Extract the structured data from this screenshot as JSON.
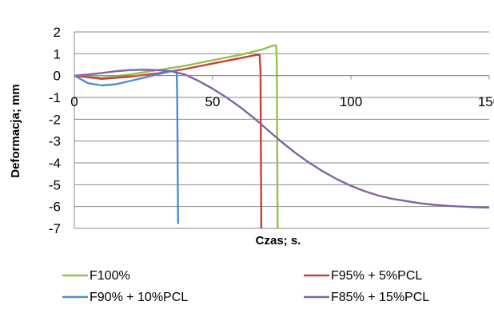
{
  "chart_data": {
    "type": "line",
    "xlabel": "Czas; s.",
    "ylabel": "Deformacja; mm",
    "xlim": [
      0,
      150
    ],
    "ylim": [
      -7,
      2
    ],
    "x_ticks": [
      "0",
      "50",
      "100",
      "150"
    ],
    "y_ticks": [
      "2",
      "1",
      "0",
      "-1",
      "-2",
      "-3",
      "-4",
      "-5",
      "-6",
      "-7"
    ],
    "grid": "horizontal",
    "legend_position": "bottom",
    "series": [
      {
        "name": "F100%",
        "color": "#92c34a",
        "points": [
          [
            0,
            0
          ],
          [
            10,
            -0.1
          ],
          [
            20,
            0.05
          ],
          [
            30,
            0.25
          ],
          [
            40,
            0.45
          ],
          [
            50,
            0.7
          ],
          [
            60,
            0.95
          ],
          [
            68,
            1.2
          ],
          [
            72,
            1.38
          ],
          [
            73,
            1.38
          ],
          [
            73.2,
            0.5
          ],
          [
            73.5,
            -7
          ]
        ]
      },
      {
        "name": "F95% + 5%PCL",
        "color": "#c9403a",
        "points": [
          [
            0,
            0
          ],
          [
            10,
            -0.15
          ],
          [
            20,
            -0.05
          ],
          [
            30,
            0.1
          ],
          [
            40,
            0.3
          ],
          [
            50,
            0.55
          ],
          [
            60,
            0.8
          ],
          [
            66,
            0.95
          ],
          [
            67,
            0.95
          ],
          [
            67.3,
            0.2
          ],
          [
            67.6,
            -7
          ]
        ]
      },
      {
        "name": "F90% + 10%PCL",
        "color": "#4a8fd6",
        "points": [
          [
            0,
            0
          ],
          [
            5,
            -0.35
          ],
          [
            10,
            -0.45
          ],
          [
            15,
            -0.4
          ],
          [
            20,
            -0.25
          ],
          [
            25,
            -0.1
          ],
          [
            30,
            0.05
          ],
          [
            35,
            0.2
          ],
          [
            37,
            0.2
          ],
          [
            37.2,
            -1
          ],
          [
            37.5,
            -6.8
          ]
        ]
      },
      {
        "name": "F85% + 15%PCL",
        "color": "#8064a2",
        "points": [
          [
            0,
            0
          ],
          [
            5,
            0.05
          ],
          [
            10,
            0.12
          ],
          [
            15,
            0.2
          ],
          [
            20,
            0.25
          ],
          [
            25,
            0.27
          ],
          [
            30,
            0.25
          ],
          [
            35,
            0.2
          ],
          [
            40,
            0.05
          ],
          [
            45,
            -0.25
          ],
          [
            50,
            -0.6
          ],
          [
            55,
            -1
          ],
          [
            60,
            -1.45
          ],
          [
            65,
            -1.95
          ],
          [
            70,
            -2.5
          ],
          [
            75,
            -3.05
          ],
          [
            80,
            -3.55
          ],
          [
            85,
            -4
          ],
          [
            90,
            -4.4
          ],
          [
            95,
            -4.75
          ],
          [
            100,
            -5.05
          ],
          [
            105,
            -5.3
          ],
          [
            110,
            -5.5
          ],
          [
            115,
            -5.65
          ],
          [
            120,
            -5.75
          ],
          [
            125,
            -5.85
          ],
          [
            130,
            -5.92
          ],
          [
            135,
            -5.97
          ],
          [
            140,
            -6.0
          ],
          [
            145,
            -6.03
          ],
          [
            150,
            -6.05
          ]
        ]
      }
    ]
  }
}
